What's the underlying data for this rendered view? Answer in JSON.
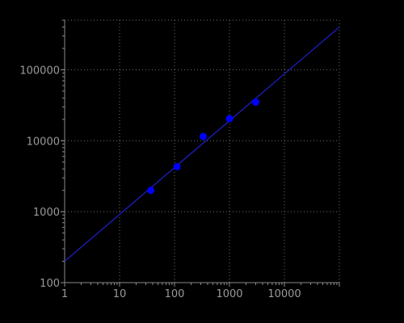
{
  "chart_data": {
    "type": "scatter",
    "title": "",
    "xlabel": "",
    "ylabel": "",
    "x_scale": "log",
    "y_scale": "log",
    "xlim": [
      1,
      100000
    ],
    "ylim": [
      100,
      500000
    ],
    "x_ticks": [
      {
        "value": 1,
        "label": "1"
      },
      {
        "value": 10,
        "label": "10"
      },
      {
        "value": 100,
        "label": "100"
      },
      {
        "value": 1000,
        "label": "1000"
      },
      {
        "value": 10000,
        "label": "10000"
      }
    ],
    "y_ticks": [
      {
        "value": 100,
        "label": "100"
      },
      {
        "value": 1000,
        "label": "1000"
      },
      {
        "value": 10000,
        "label": "10000"
      },
      {
        "value": 100000,
        "label": "100000"
      }
    ],
    "grid": true,
    "points": [
      {
        "x": 37,
        "y": 2000
      },
      {
        "x": 111,
        "y": 4300
      },
      {
        "x": 333,
        "y": 11500
      },
      {
        "x": 1000,
        "y": 20500
      },
      {
        "x": 3000,
        "y": 35000
      }
    ],
    "fit_line": {
      "x": [
        1,
        100000
      ],
      "y": [
        200,
        400000
      ]
    },
    "colors": {
      "background": "#000000",
      "points": "#0000ff",
      "fit_line": "#1a1aa8",
      "axis": "#8a8a8a",
      "grid": "#6f6f6f",
      "tick_text": "#9a9a9a"
    }
  }
}
